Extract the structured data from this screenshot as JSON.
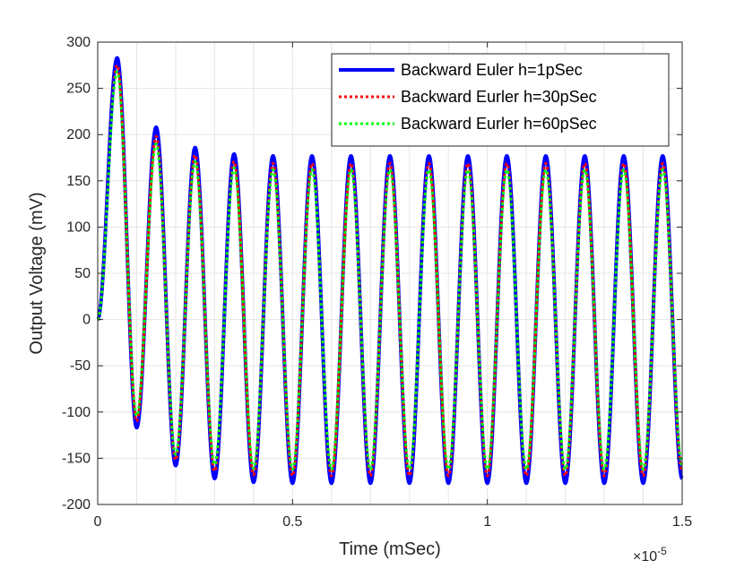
{
  "chart_data": {
    "type": "line",
    "title": "",
    "xlabel": "Time (mSec)",
    "ylabel": "Output Voltage (mV)",
    "x_exponent_label": "×10",
    "x_exponent_power": "-5",
    "xlim": [
      0,
      1.5
    ],
    "ylim": [
      -200,
      300
    ],
    "xticks": [
      0,
      0.5,
      1,
      1.5
    ],
    "xtick_labels": [
      "0",
      "0.5",
      "1",
      "1.5"
    ],
    "yticks": [
      300,
      250,
      200,
      150,
      100,
      50,
      0,
      -50,
      -100,
      -150,
      -200
    ],
    "ytick_labels": [
      "300",
      "250",
      "200",
      "150",
      "100",
      "50",
      "0",
      "-50",
      "-100",
      "-150",
      "-200"
    ],
    "grid": true,
    "legend_position": "top-right",
    "x_unit_note": "x values in units of 1e-5 as printed on axis",
    "x": [
      0,
      0.025,
      0.05,
      0.075,
      0.1,
      0.15,
      0.2,
      0.25,
      0.3,
      0.35,
      0.4,
      0.45,
      0.5,
      0.55,
      0.6,
      0.65,
      0.7,
      0.75,
      0.8,
      0.85,
      0.9,
      0.95,
      1.0,
      1.05,
      1.1,
      1.15,
      1.2,
      1.25,
      1.3,
      1.35,
      1.4,
      1.45,
      1.5
    ],
    "series": [
      {
        "name": "Backward Euler h=1pSec",
        "color": "#0000ff",
        "style": "solid",
        "values": [
          0,
          130,
          283,
          100,
          -117,
          208,
          -158,
          186,
          -172,
          179,
          -176,
          177,
          -177,
          177,
          -177,
          177,
          -177,
          177,
          -177,
          177,
          -177,
          177,
          -177,
          177,
          -177,
          177,
          -177,
          177,
          -177,
          177,
          -177,
          177,
          -172
        ]
      },
      {
        "name": "Backward Eurler h=30pSec",
        "color": "#ff0000",
        "style": "dotted",
        "values": [
          0,
          128,
          275,
          92,
          -110,
          198,
          -152,
          178,
          -164,
          171,
          -168,
          169,
          -169,
          169,
          -169,
          169,
          -169,
          169,
          -169,
          169,
          -169,
          169,
          -169,
          169,
          -169,
          169,
          -169,
          169,
          -169,
          169,
          -169,
          169,
          -164
        ]
      },
      {
        "name": "Backward Eurler h=60pSec",
        "color": "#00ff00",
        "style": "dotted",
        "values": [
          0,
          126,
          268,
          86,
          -104,
          190,
          -146,
          171,
          -157,
          164,
          -161,
          162,
          -162,
          162,
          -162,
          162,
          -162,
          162,
          -162,
          162,
          -162,
          162,
          -162,
          162,
          -162,
          162,
          -162,
          162,
          -162,
          162,
          -162,
          162,
          -157
        ]
      }
    ]
  }
}
